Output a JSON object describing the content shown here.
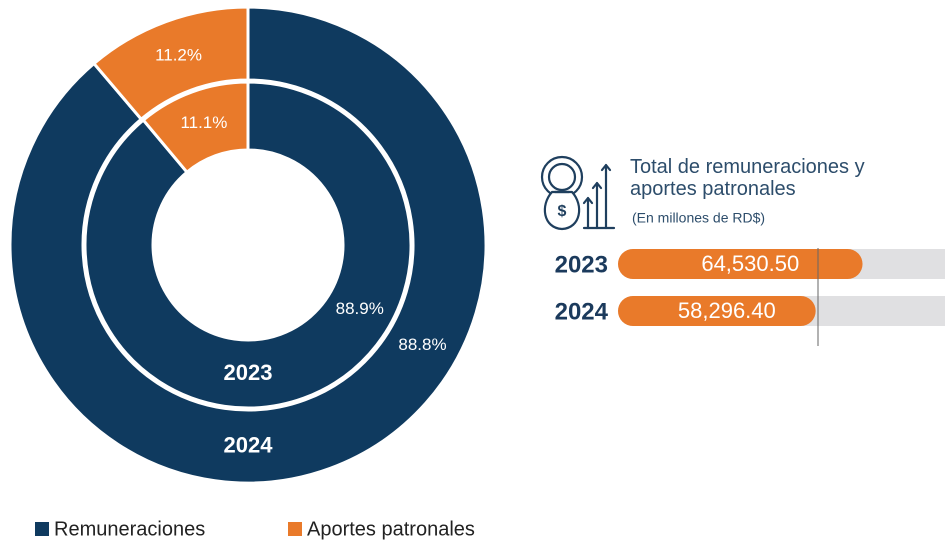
{
  "chart_data": [
    {
      "type": "donut",
      "categories": [
        "Remuneraciones",
        "Aportes patronales"
      ],
      "colors": [
        "#0f3a5f",
        "#e97a2a"
      ],
      "series": [
        {
          "name": "2024",
          "values": [
            88.8,
            11.2
          ],
          "value_labels": [
            "88.8%",
            "11.2%"
          ]
        },
        {
          "name": "2023",
          "values": [
            88.9,
            11.1
          ],
          "value_labels": [
            "88.9%",
            "11.1%"
          ]
        }
      ],
      "legend": "bottom"
    },
    {
      "type": "bar",
      "orientation": "horizontal",
      "title": "Total de remuneraciones y aportes patronales",
      "subtitle": "(En millones de RD$)",
      "categories": [
        "2023",
        "2024"
      ],
      "values": [
        64530.5,
        58296.4
      ],
      "value_labels": [
        "64,530.50",
        "58,296.40"
      ],
      "color": "#e97a2a",
      "track_color": "#e0e0e2",
      "xlim": [
        32000,
        75500
      ]
    }
  ]
}
